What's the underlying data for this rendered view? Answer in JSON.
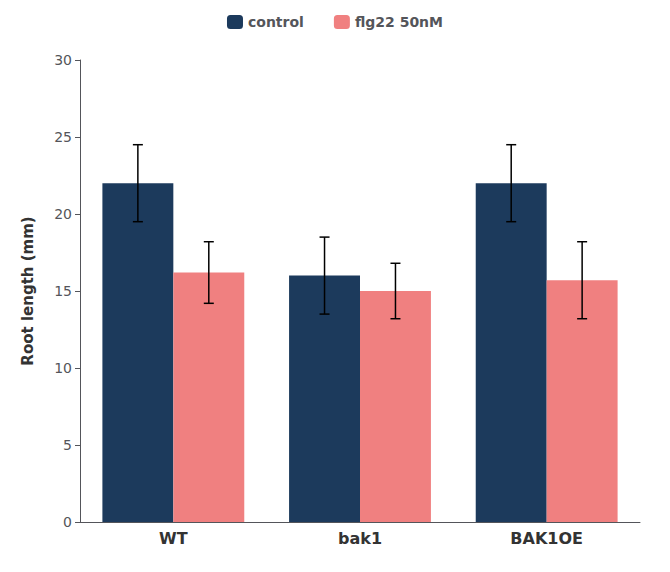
{
  "chart_data": {
    "type": "bar",
    "ylabel": "Root length (mm)",
    "categories": [
      "WT",
      "bak1",
      "BAK1OE"
    ],
    "series": [
      {
        "name": "control",
        "color": "#1C3A5C",
        "values": [
          22,
          16,
          22
        ],
        "errors": [
          2.5,
          2.5,
          2.5
        ]
      },
      {
        "name": "flg22 50nM",
        "color": "#F08080",
        "values": [
          16.2,
          15.0,
          15.7
        ],
        "errors": [
          2.0,
          1.8,
          2.5
        ]
      }
    ],
    "ylim": [
      0,
      30
    ],
    "yticks": [
      0,
      5,
      10,
      15,
      20,
      25,
      30
    ],
    "grid": false,
    "legend": "top"
  }
}
